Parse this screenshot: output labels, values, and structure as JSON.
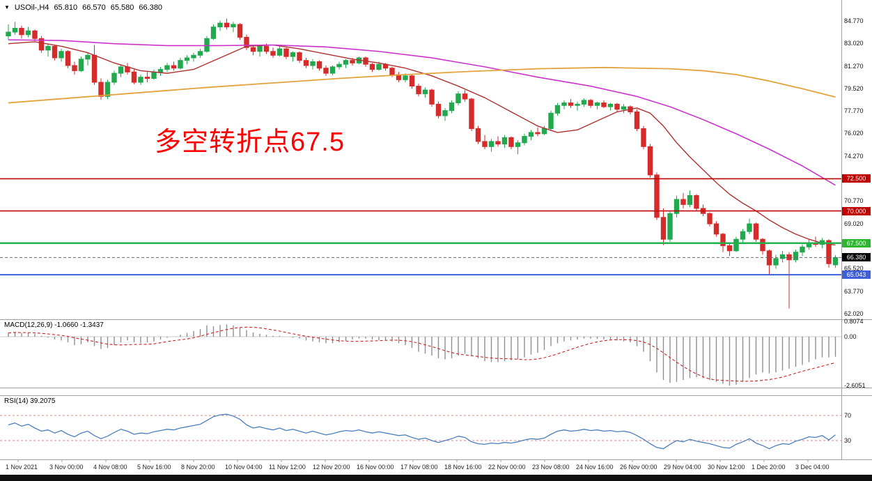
{
  "header": {
    "arrow": "▼",
    "title": "USOil-,H4",
    "open": "65.810",
    "high": "66.570",
    "low": "65.580",
    "close": "66.380"
  },
  "annotation": {
    "text": "多空转折点67.5",
    "color": "#ff0000"
  },
  "colors": {
    "candle_up": "#21a94e",
    "candle_down": "#d62b2b",
    "ma_orange": "#e2a33c",
    "ma_magenta": "#cc33cc",
    "ma_red": "#b03030",
    "macd_bar": "#8f8f8f",
    "macd_signal": "#cc2222",
    "rsi_line": "#4a7fbf",
    "rsi_level": "#cc8888",
    "separator": "#a0a0a0",
    "bid_line": "#666666",
    "zero_line": "#c8c8c8"
  },
  "price_axis": {
    "labels": [
      {
        "price": 84.77,
        "text": "84.770"
      },
      {
        "price": 83.02,
        "text": "83.020"
      },
      {
        "price": 81.27,
        "text": "81.270"
      },
      {
        "price": 79.52,
        "text": "79.520"
      },
      {
        "price": 77.77,
        "text": "77.770"
      },
      {
        "price": 76.02,
        "text": "76.020"
      },
      {
        "price": 74.27,
        "text": "74.270"
      },
      {
        "price": 70.77,
        "text": "70.770"
      },
      {
        "price": 69.02,
        "text": "69.020"
      },
      {
        "price": 65.52,
        "text": "65.520"
      },
      {
        "price": 63.77,
        "text": "63.770"
      },
      {
        "price": 62.02,
        "text": "62.020"
      }
    ],
    "badges": [
      {
        "price": 72.5,
        "text": "72.500",
        "bg": "#c00000"
      },
      {
        "price": 70.0,
        "text": "70.000",
        "bg": "#c00000"
      },
      {
        "price": 67.5,
        "text": "67.500",
        "bg": "#2db52d"
      },
      {
        "price": 66.38,
        "text": "66.380",
        "bg": "#000000"
      },
      {
        "price": 65.043,
        "text": "65.043",
        "bg": "#3e5fd7"
      }
    ]
  },
  "time_axis": {
    "labels": [
      "1 Nov 2021",
      "3 Nov 00:00",
      "4 Nov 08:00",
      "5 Nov 16:00",
      "8 Nov 20:00",
      "10 Nov 04:00",
      "11 Nov 12:00",
      "12 Nov 20:00",
      "16 Nov 00:00",
      "17 Nov 08:00",
      "18 Nov 16:00",
      "22 Nov 00:00",
      "23 Nov 08:00",
      "24 Nov 16:00",
      "26 Nov 00:00",
      "29 Nov 04:00",
      "30 Nov 12:00",
      "1 Dec 20:00",
      "3 Dec 04:00"
    ]
  },
  "macd": {
    "label": "MACD(12,26,9) -1.0660 -1.3437",
    "main_value": "-1.0660",
    "signal_value": "-1.3437",
    "axis": [
      {
        "v": 0.8074,
        "text": "0.8074"
      },
      {
        "v": 0,
        "text": "0.00"
      },
      {
        "v": -2.6051,
        "text": "-2.6051"
      }
    ]
  },
  "rsi": {
    "label": "RSI(14) 39.2075",
    "value": "39.2075",
    "levels": [
      70,
      30
    ]
  },
  "chart_data": {
    "type": "candlestick",
    "symbol": "USOil",
    "timeframe": "H4",
    "title": "USOil-,H4 65.810 66.570 65.580 66.380",
    "ylim": [
      61.6,
      86.4
    ],
    "price_step": 1.75,
    "hlines": [
      {
        "price": 72.5,
        "color": "#c00000",
        "width": 1.6
      },
      {
        "price": 70.0,
        "color": "#c00000",
        "width": 1.6
      },
      {
        "price": 67.5,
        "color": "#22b14c",
        "width": 2.4
      },
      {
        "price": 65.043,
        "color": "#3e5fd7",
        "width": 2.0
      }
    ],
    "bid": {
      "price": 66.38,
      "text": "66.380"
    },
    "ohlc": [
      [
        83.6,
        84.5,
        83.3,
        83.9
      ],
      [
        83.9,
        84.7,
        83.7,
        84.2
      ],
      [
        84.2,
        84.4,
        83.4,
        83.7
      ],
      [
        83.7,
        84.3,
        83.5,
        84.0
      ],
      [
        84.0,
        84.1,
        83.2,
        83.4
      ],
      [
        83.4,
        83.6,
        82.3,
        82.5
      ],
      [
        82.5,
        83.0,
        82.0,
        82.8
      ],
      [
        82.8,
        82.9,
        81.7,
        81.9
      ],
      [
        81.9,
        82.6,
        81.6,
        82.4
      ],
      [
        82.4,
        82.5,
        81.1,
        81.3
      ],
      [
        81.3,
        81.6,
        80.6,
        80.9
      ],
      [
        80.9,
        82.0,
        80.8,
        81.8
      ],
      [
        81.8,
        82.3,
        81.3,
        82.1
      ],
      [
        82.1,
        82.9,
        79.8,
        80.0
      ],
      [
        80.0,
        80.3,
        78.65,
        78.9
      ],
      [
        78.9,
        80.2,
        78.7,
        80.0
      ],
      [
        80.0,
        80.9,
        79.8,
        80.7
      ],
      [
        80.7,
        81.4,
        80.4,
        81.2
      ],
      [
        81.2,
        81.5,
        80.6,
        80.8
      ],
      [
        80.8,
        81.0,
        79.85,
        80.0
      ],
      [
        80.0,
        80.6,
        79.8,
        80.4
      ],
      [
        80.4,
        80.8,
        80.0,
        80.3
      ],
      [
        80.3,
        81.0,
        80.2,
        80.8
      ],
      [
        80.8,
        81.2,
        80.5,
        81.0
      ],
      [
        81.0,
        81.5,
        80.8,
        81.3
      ],
      [
        81.3,
        81.6,
        80.9,
        81.1
      ],
      [
        81.1,
        81.9,
        81.0,
        81.7
      ],
      [
        81.7,
        82.1,
        81.4,
        81.9
      ],
      [
        81.9,
        82.3,
        81.6,
        82.1
      ],
      [
        82.1,
        82.6,
        81.9,
        82.4
      ],
      [
        82.4,
        83.6,
        82.3,
        83.4
      ],
      [
        83.4,
        84.5,
        83.3,
        84.3
      ],
      [
        84.3,
        84.8,
        84.0,
        84.6
      ],
      [
        84.6,
        84.95,
        84.1,
        84.3
      ],
      [
        84.3,
        84.7,
        83.9,
        84.5
      ],
      [
        84.5,
        84.6,
        83.3,
        83.5
      ],
      [
        83.5,
        83.7,
        82.5,
        82.7
      ],
      [
        82.7,
        82.9,
        82.1,
        82.4
      ],
      [
        82.4,
        82.9,
        82.0,
        82.8
      ],
      [
        82.8,
        83.0,
        82.2,
        82.4
      ],
      [
        82.4,
        82.7,
        81.9,
        82.1
      ],
      [
        82.1,
        82.8,
        82.0,
        82.6
      ],
      [
        82.6,
        82.7,
        81.8,
        82.0
      ],
      [
        82.0,
        82.4,
        81.6,
        82.3
      ],
      [
        82.3,
        82.4,
        81.5,
        81.7
      ],
      [
        81.7,
        81.9,
        81.1,
        81.3
      ],
      [
        81.3,
        81.8,
        81.0,
        81.6
      ],
      [
        81.6,
        81.7,
        80.9,
        81.1
      ],
      [
        81.1,
        81.3,
        80.5,
        80.7
      ],
      [
        80.7,
        81.3,
        80.55,
        81.2
      ],
      [
        81.2,
        81.6,
        81.0,
        81.4
      ],
      [
        81.4,
        81.8,
        81.1,
        81.7
      ],
      [
        81.7,
        81.9,
        81.3,
        81.5
      ],
      [
        81.5,
        82.0,
        81.4,
        81.9
      ],
      [
        81.9,
        82.0,
        81.2,
        81.4
      ],
      [
        81.4,
        81.5,
        80.8,
        81.0
      ],
      [
        81.0,
        81.6,
        80.9,
        81.4
      ],
      [
        81.4,
        81.5,
        80.9,
        81.1
      ],
      [
        81.1,
        81.2,
        80.4,
        80.6
      ],
      [
        80.6,
        80.8,
        80.0,
        80.2
      ],
      [
        80.2,
        80.7,
        80.0,
        80.5
      ],
      [
        80.5,
        80.6,
        79.5,
        79.7
      ],
      [
        79.7,
        79.9,
        78.9,
        79.1
      ],
      [
        79.1,
        79.6,
        78.8,
        79.4
      ],
      [
        79.4,
        79.5,
        78.1,
        78.3
      ],
      [
        78.3,
        78.5,
        77.2,
        77.4
      ],
      [
        77.4,
        78.0,
        77.0,
        77.8
      ],
      [
        77.8,
        78.6,
        77.6,
        78.4
      ],
      [
        78.4,
        79.3,
        78.2,
        79.1
      ],
      [
        79.1,
        79.4,
        78.5,
        78.7
      ],
      [
        78.7,
        78.8,
        76.2,
        76.4
      ],
      [
        76.4,
        76.6,
        75.2,
        75.4
      ],
      [
        75.4,
        75.9,
        74.8,
        75.0
      ],
      [
        75.0,
        75.6,
        74.6,
        75.4
      ],
      [
        75.4,
        75.8,
        75.0,
        75.2
      ],
      [
        75.2,
        75.9,
        74.9,
        75.7
      ],
      [
        75.7,
        75.8,
        74.8,
        75.0
      ],
      [
        75.0,
        75.5,
        74.4,
        75.3
      ],
      [
        75.3,
        76.0,
        75.1,
        75.8
      ],
      [
        75.8,
        76.3,
        75.5,
        76.1
      ],
      [
        76.1,
        76.5,
        75.8,
        76.0
      ],
      [
        76.0,
        76.6,
        75.9,
        76.4
      ],
      [
        76.4,
        77.8,
        76.3,
        77.6
      ],
      [
        77.6,
        78.4,
        77.4,
        78.2
      ],
      [
        78.2,
        78.6,
        77.9,
        78.4
      ],
      [
        78.4,
        78.7,
        78.0,
        78.2
      ],
      [
        78.2,
        78.5,
        77.8,
        78.3
      ],
      [
        78.3,
        78.75,
        78.1,
        78.6
      ],
      [
        78.6,
        78.7,
        78.0,
        78.2
      ],
      [
        78.2,
        78.5,
        77.9,
        78.4
      ],
      [
        78.4,
        78.6,
        78.0,
        78.1
      ],
      [
        78.1,
        78.4,
        77.8,
        78.3
      ],
      [
        78.3,
        78.4,
        77.7,
        77.9
      ],
      [
        77.9,
        78.3,
        77.6,
        78.1
      ],
      [
        78.1,
        78.2,
        77.5,
        77.7
      ],
      [
        77.7,
        77.9,
        76.2,
        76.4
      ],
      [
        76.4,
        76.6,
        74.8,
        75.0
      ],
      [
        75.0,
        75.2,
        72.6,
        72.8
      ],
      [
        72.8,
        73.0,
        69.3,
        69.5
      ],
      [
        69.5,
        70.2,
        67.35,
        67.8
      ],
      [
        67.8,
        70.0,
        67.6,
        69.8
      ],
      [
        69.8,
        71.2,
        69.5,
        70.9
      ],
      [
        70.9,
        71.4,
        70.2,
        70.5
      ],
      [
        70.5,
        71.6,
        70.3,
        71.2
      ],
      [
        71.2,
        71.3,
        70.0,
        70.2
      ],
      [
        70.2,
        70.5,
        69.6,
        69.8
      ],
      [
        69.8,
        69.9,
        68.8,
        69.0
      ],
      [
        69.0,
        69.2,
        68.0,
        68.2
      ],
      [
        68.2,
        68.3,
        66.8,
        67.3
      ],
      [
        67.3,
        67.5,
        66.5,
        66.9
      ],
      [
        66.9,
        68.0,
        66.8,
        67.8
      ],
      [
        67.8,
        68.6,
        67.5,
        68.4
      ],
      [
        68.4,
        69.4,
        68.2,
        69.0
      ],
      [
        69.0,
        69.1,
        67.6,
        67.8
      ],
      [
        67.8,
        67.9,
        66.6,
        66.9
      ],
      [
        66.9,
        67.0,
        65.02,
        65.8
      ],
      [
        65.8,
        66.6,
        65.5,
        66.3
      ],
      [
        66.3,
        66.9,
        66.0,
        66.6
      ],
      [
        66.6,
        66.8,
        62.42,
        66.2
      ],
      [
        66.2,
        67.0,
        66.0,
        66.8
      ],
      [
        66.8,
        67.4,
        66.5,
        67.2
      ],
      [
        67.2,
        67.8,
        67.0,
        67.5
      ],
      [
        67.5,
        68.0,
        67.2,
        67.4
      ],
      [
        67.4,
        67.9,
        67.1,
        67.7
      ],
      [
        67.7,
        67.8,
        65.6,
        65.9
      ],
      [
        65.81,
        66.57,
        65.58,
        66.38
      ]
    ],
    "ma": {
      "orange": [
        [
          0,
          78.4
        ],
        [
          10,
          78.8
        ],
        [
          20,
          79.2
        ],
        [
          30,
          79.6
        ],
        [
          40,
          79.95
        ],
        [
          50,
          80.3
        ],
        [
          60,
          80.6
        ],
        [
          70,
          80.85
        ],
        [
          80,
          81.05
        ],
        [
          90,
          81.15
        ],
        [
          100,
          81.05
        ],
        [
          105,
          80.9
        ],
        [
          110,
          80.6
        ],
        [
          115,
          80.1
        ],
        [
          120,
          79.5
        ],
        [
          125,
          78.85
        ]
      ],
      "magenta": [
        [
          0,
          83.3
        ],
        [
          8,
          83.25
        ],
        [
          16,
          83.0
        ],
        [
          24,
          82.85
        ],
        [
          32,
          82.85
        ],
        [
          40,
          82.9
        ],
        [
          48,
          82.75
        ],
        [
          56,
          82.4
        ],
        [
          64,
          81.9
        ],
        [
          72,
          81.2
        ],
        [
          80,
          80.4
        ],
        [
          88,
          79.7
        ],
        [
          95,
          78.9
        ],
        [
          100,
          78.1
        ],
        [
          105,
          77.1
        ],
        [
          110,
          76.0
        ],
        [
          115,
          74.8
        ],
        [
          120,
          73.5
        ],
        [
          125,
          72.0
        ]
      ],
      "red": [
        [
          0,
          83.0
        ],
        [
          4,
          83.15
        ],
        [
          8,
          82.8
        ],
        [
          12,
          82.3
        ],
        [
          16,
          81.5
        ],
        [
          20,
          80.9
        ],
        [
          24,
          80.7
        ],
        [
          28,
          81.0
        ],
        [
          32,
          81.9
        ],
        [
          36,
          82.8
        ],
        [
          40,
          82.9
        ],
        [
          44,
          82.6
        ],
        [
          48,
          82.2
        ],
        [
          52,
          81.8
        ],
        [
          56,
          81.5
        ],
        [
          60,
          81.1
        ],
        [
          64,
          80.5
        ],
        [
          68,
          79.7
        ],
        [
          72,
          78.8
        ],
        [
          76,
          77.7
        ],
        [
          80,
          76.6
        ],
        [
          83,
          76.1
        ],
        [
          86,
          76.3
        ],
        [
          89,
          77.0
        ],
        [
          92,
          77.7
        ],
        [
          95,
          78.0
        ],
        [
          97,
          77.6
        ],
        [
          99,
          76.6
        ],
        [
          101,
          75.3
        ],
        [
          103,
          74.2
        ],
        [
          105,
          73.2
        ],
        [
          107,
          72.2
        ],
        [
          109,
          71.3
        ],
        [
          111,
          70.6
        ],
        [
          113,
          70.0
        ],
        [
          115,
          69.3
        ],
        [
          117,
          68.7
        ],
        [
          119,
          68.2
        ],
        [
          121,
          67.8
        ],
        [
          123,
          67.5
        ],
        [
          125,
          67.35
        ]
      ]
    },
    "macd_histogram": [
      0.2,
      0.25,
      0.2,
      0.22,
      0.15,
      0.05,
      -0.05,
      -0.15,
      -0.2,
      -0.3,
      -0.45,
      -0.4,
      -0.3,
      -0.5,
      -0.65,
      -0.6,
      -0.45,
      -0.3,
      -0.2,
      -0.3,
      -0.35,
      -0.3,
      -0.25,
      -0.15,
      -0.05,
      0.0,
      0.1,
      0.2,
      0.3,
      0.4,
      0.6,
      0.55,
      0.62,
      0.65,
      0.6,
      0.5,
      0.35,
      0.22,
      0.15,
      0.1,
      0.05,
      0.05,
      0.0,
      -0.05,
      -0.1,
      -0.2,
      -0.25,
      -0.3,
      -0.35,
      -0.35,
      -0.3,
      -0.22,
      -0.15,
      -0.1,
      -0.1,
      -0.15,
      -0.18,
      -0.2,
      -0.25,
      -0.35,
      -0.45,
      -0.6,
      -0.8,
      -0.9,
      -1.0,
      -1.15,
      -1.2,
      -1.15,
      -1.0,
      -0.9,
      -1.0,
      -1.15,
      -1.3,
      -1.35,
      -1.35,
      -1.3,
      -1.25,
      -1.2,
      -1.1,
      -0.95,
      -0.85,
      -0.7,
      -0.5,
      -0.35,
      -0.25,
      -0.2,
      -0.15,
      -0.1,
      -0.1,
      -0.12,
      -0.15,
      -0.15,
      -0.2,
      -0.25,
      -0.3,
      -0.5,
      -0.8,
      -1.3,
      -1.9,
      -2.3,
      -2.45,
      -2.4,
      -2.3,
      -2.2,
      -2.15,
      -2.2,
      -2.3,
      -2.4,
      -2.5,
      -2.6,
      -2.55,
      -2.4,
      -2.2,
      -2.0,
      -1.9,
      -1.95,
      -1.9,
      -1.8,
      -1.7,
      -1.6,
      -1.5,
      -1.35,
      -1.2,
      -1.1,
      -1.1,
      -1.066
    ],
    "rsi_values": [
      55,
      58,
      53,
      56,
      50,
      45,
      47,
      42,
      46,
      40,
      36,
      42,
      45,
      38,
      33,
      37,
      43,
      48,
      45,
      40,
      42,
      41,
      44,
      46,
      48,
      47,
      50,
      52,
      54,
      56,
      62,
      68,
      71,
      72,
      69,
      64,
      55,
      50,
      52,
      49,
      47,
      50,
      46,
      48,
      45,
      42,
      45,
      42,
      39,
      41,
      44,
      46,
      45,
      47,
      44,
      42,
      44,
      42,
      40,
      38,
      39,
      35,
      32,
      34,
      30,
      27,
      30,
      33,
      37,
      35,
      28,
      25,
      24,
      26,
      25,
      27,
      26,
      28,
      31,
      33,
      32,
      34,
      40,
      45,
      47,
      45,
      46,
      48,
      46,
      47,
      45,
      46,
      44,
      45,
      43,
      38,
      32,
      25,
      19,
      17,
      24,
      30,
      28,
      32,
      29,
      27,
      25,
      22,
      19,
      18,
      24,
      28,
      33,
      26,
      22,
      17,
      22,
      25,
      24,
      29,
      32,
      36,
      35,
      38,
      31,
      39.21
    ]
  }
}
